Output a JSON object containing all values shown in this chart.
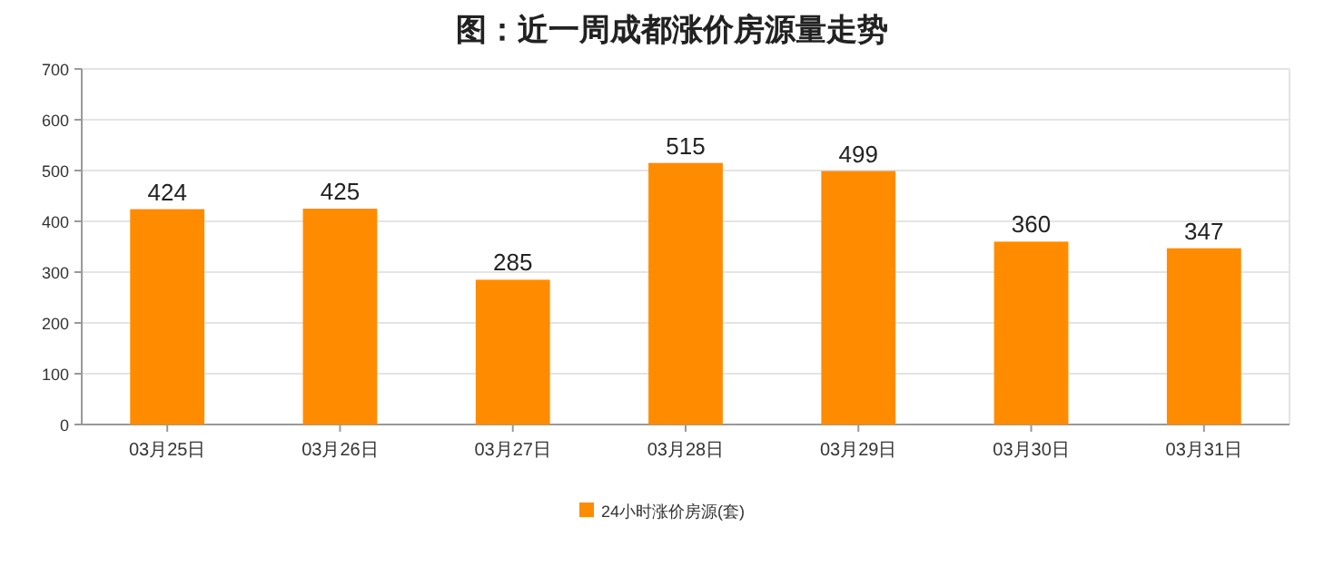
{
  "chart_data": {
    "type": "bar",
    "title": "图：近一周成都涨价房源量走势",
    "categories": [
      "03月25日",
      "03月26日",
      "03月27日",
      "03月28日",
      "03月29日",
      "03月30日",
      "03月31日"
    ],
    "series": [
      {
        "name": "24小时涨价房源(套)",
        "color": "#ff8c00",
        "values": [
          424,
          425,
          285,
          515,
          499,
          360,
          347
        ]
      }
    ],
    "ylim": [
      0,
      700
    ],
    "yticks": [
      0,
      100,
      200,
      300,
      400,
      500,
      600,
      700
    ],
    "grid": "y",
    "legend": "bottom",
    "data_labels": true
  }
}
